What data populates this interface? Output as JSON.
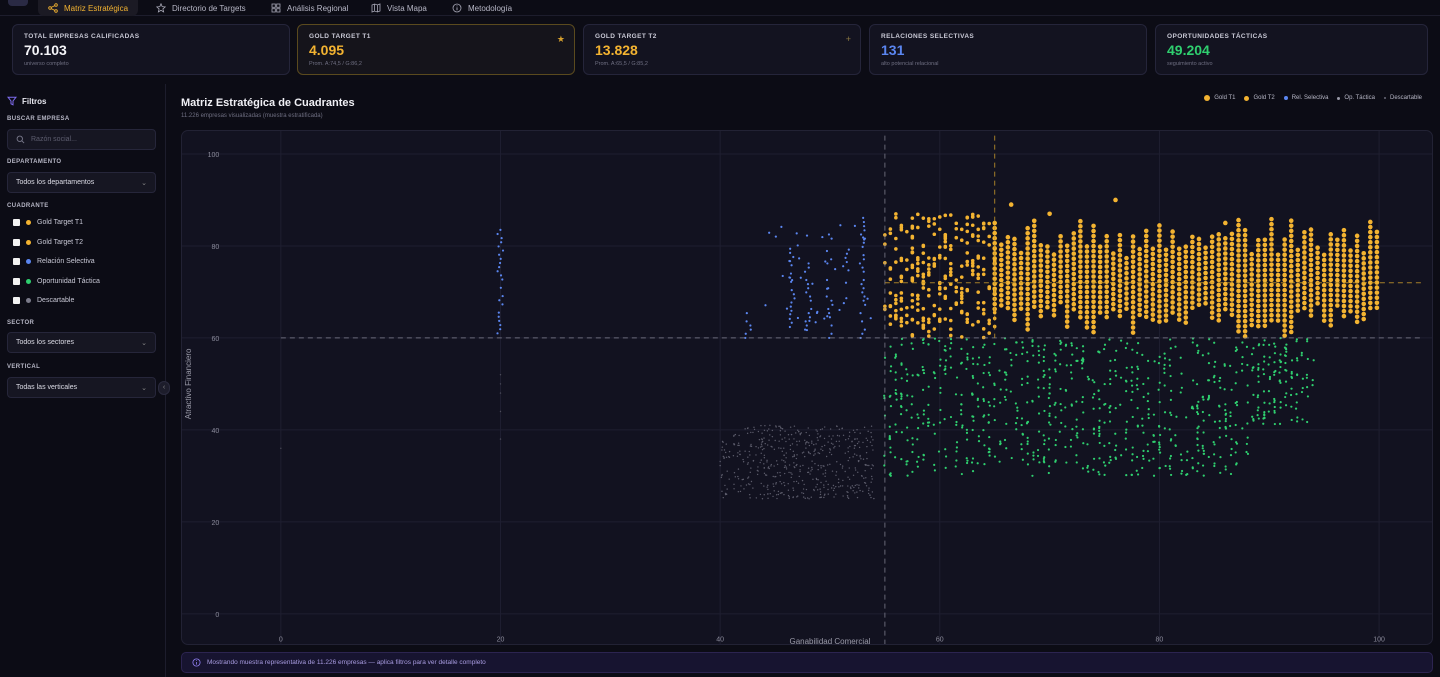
{
  "nav": {
    "tabs": [
      {
        "label": "Matriz Estratégica",
        "icon": "share-nodes-icon",
        "active": true
      },
      {
        "label": "Directorio de Targets",
        "icon": "star-icon",
        "active": false
      },
      {
        "label": "Análisis Regional",
        "icon": "grid-icon",
        "active": false
      },
      {
        "label": "Vista Mapa",
        "icon": "map-icon",
        "active": false
      },
      {
        "label": "Metodología",
        "icon": "info-icon",
        "active": false
      }
    ]
  },
  "kpis": [
    {
      "label": "TOTAL EMPRESAS CALIFICADAS",
      "value": "70.103",
      "sub": "universo completo",
      "color": "#f4f4f8"
    },
    {
      "label": "GOLD TARGET T1",
      "value": "4.095",
      "sub": "Prom. A:74,5 / G:86,2",
      "color": "#f3b331"
    },
    {
      "label": "GOLD TARGET T2",
      "value": "13.828",
      "sub": "Prom. A:65,5 / G:85,2",
      "color": "#f3b331"
    },
    {
      "label": "RELACIONES SELECTIVAS",
      "value": "131",
      "sub": "alto potencial relacional",
      "color": "#5b86f0"
    },
    {
      "label": "OPORTUNIDADES TÁCTICAS",
      "value": "49.204",
      "sub": "seguimiento activo",
      "color": "#2fcf6f"
    }
  ],
  "sidebar": {
    "title": "Filtros",
    "search_label": "BUSCAR EMPRESA",
    "search_placeholder": "Razón social...",
    "dept_label": "DEPARTAMENTO",
    "dept_value": "Todos los departamentos",
    "quad_label": "CUADRANTE",
    "quadrants": [
      {
        "label": "Gold Target T1",
        "color": "#f3b331"
      },
      {
        "label": "Gold Target T2",
        "color": "#f3b331"
      },
      {
        "label": "Relación Selectiva",
        "color": "#5b86f0"
      },
      {
        "label": "Oportunidad Táctica",
        "color": "#2fcf6f"
      },
      {
        "label": "Descartable",
        "color": "#7b7b8a"
      }
    ],
    "sector_label": "SECTOR",
    "sector_value": "Todos los sectores",
    "vertical_label": "VERTICAL",
    "vertical_value": "Todas las verticales"
  },
  "chart_header": {
    "title": "Matriz Estratégica de Cuadrantes",
    "subtitle": "11.226 empresas visualizadas (muestra estratificada)",
    "legend": [
      {
        "label": "Gold T1",
        "color": "#f3b331"
      },
      {
        "label": "Gold T2",
        "color": "#f3b331"
      },
      {
        "label": "Rel. Selectiva",
        "color": "#5b86f0"
      },
      {
        "label": "Op. Táctica",
        "color": "#9a9aa8"
      },
      {
        "label": "Descartable",
        "color": "#6a6a78"
      }
    ]
  },
  "chart_data": {
    "type": "scatter",
    "title": "Matriz Estratégica de Cuadrantes",
    "xlabel": "Ganabilidad Comercial",
    "ylabel": "Atractivo Financiero",
    "xlim": [
      -9,
      105
    ],
    "ylim": [
      -7,
      105
    ],
    "xticks": [
      0,
      20,
      40,
      60,
      80,
      100
    ],
    "yticks": [
      0,
      20,
      40,
      60,
      80,
      100
    ],
    "grid": true,
    "reference_lines": {
      "x": [
        55,
        65
      ],
      "y": [
        60,
        72
      ]
    },
    "series": [
      {
        "name": "Gold T1",
        "color": "#f3b331",
        "x_range": [
          55,
          100
        ],
        "y_range": [
          60,
          90
        ],
        "approx_count": 4095
      },
      {
        "name": "Gold T2",
        "color": "#f3b331",
        "x_range": [
          55,
          100
        ],
        "y_range": [
          60,
          88
        ],
        "approx_count": 13828
      },
      {
        "name": "Rel. Selectiva",
        "color": "#5b86f0",
        "x_range": [
          20,
          54
        ],
        "y_range": [
          60,
          87
        ],
        "approx_count": 131
      },
      {
        "name": "Op. Táctica",
        "color": "#2fcf6f",
        "x_range": [
          55,
          94
        ],
        "y_range": [
          30,
          60
        ],
        "approx_count": 49204
      },
      {
        "name": "Descartable",
        "color": "#6a6a78",
        "x_range": [
          0,
          54
        ],
        "y_range": [
          23,
          52
        ]
      }
    ]
  },
  "notice": "Mostrando muestra representativa de 11.226 empresas — aplica filtros para ver detalle completo"
}
